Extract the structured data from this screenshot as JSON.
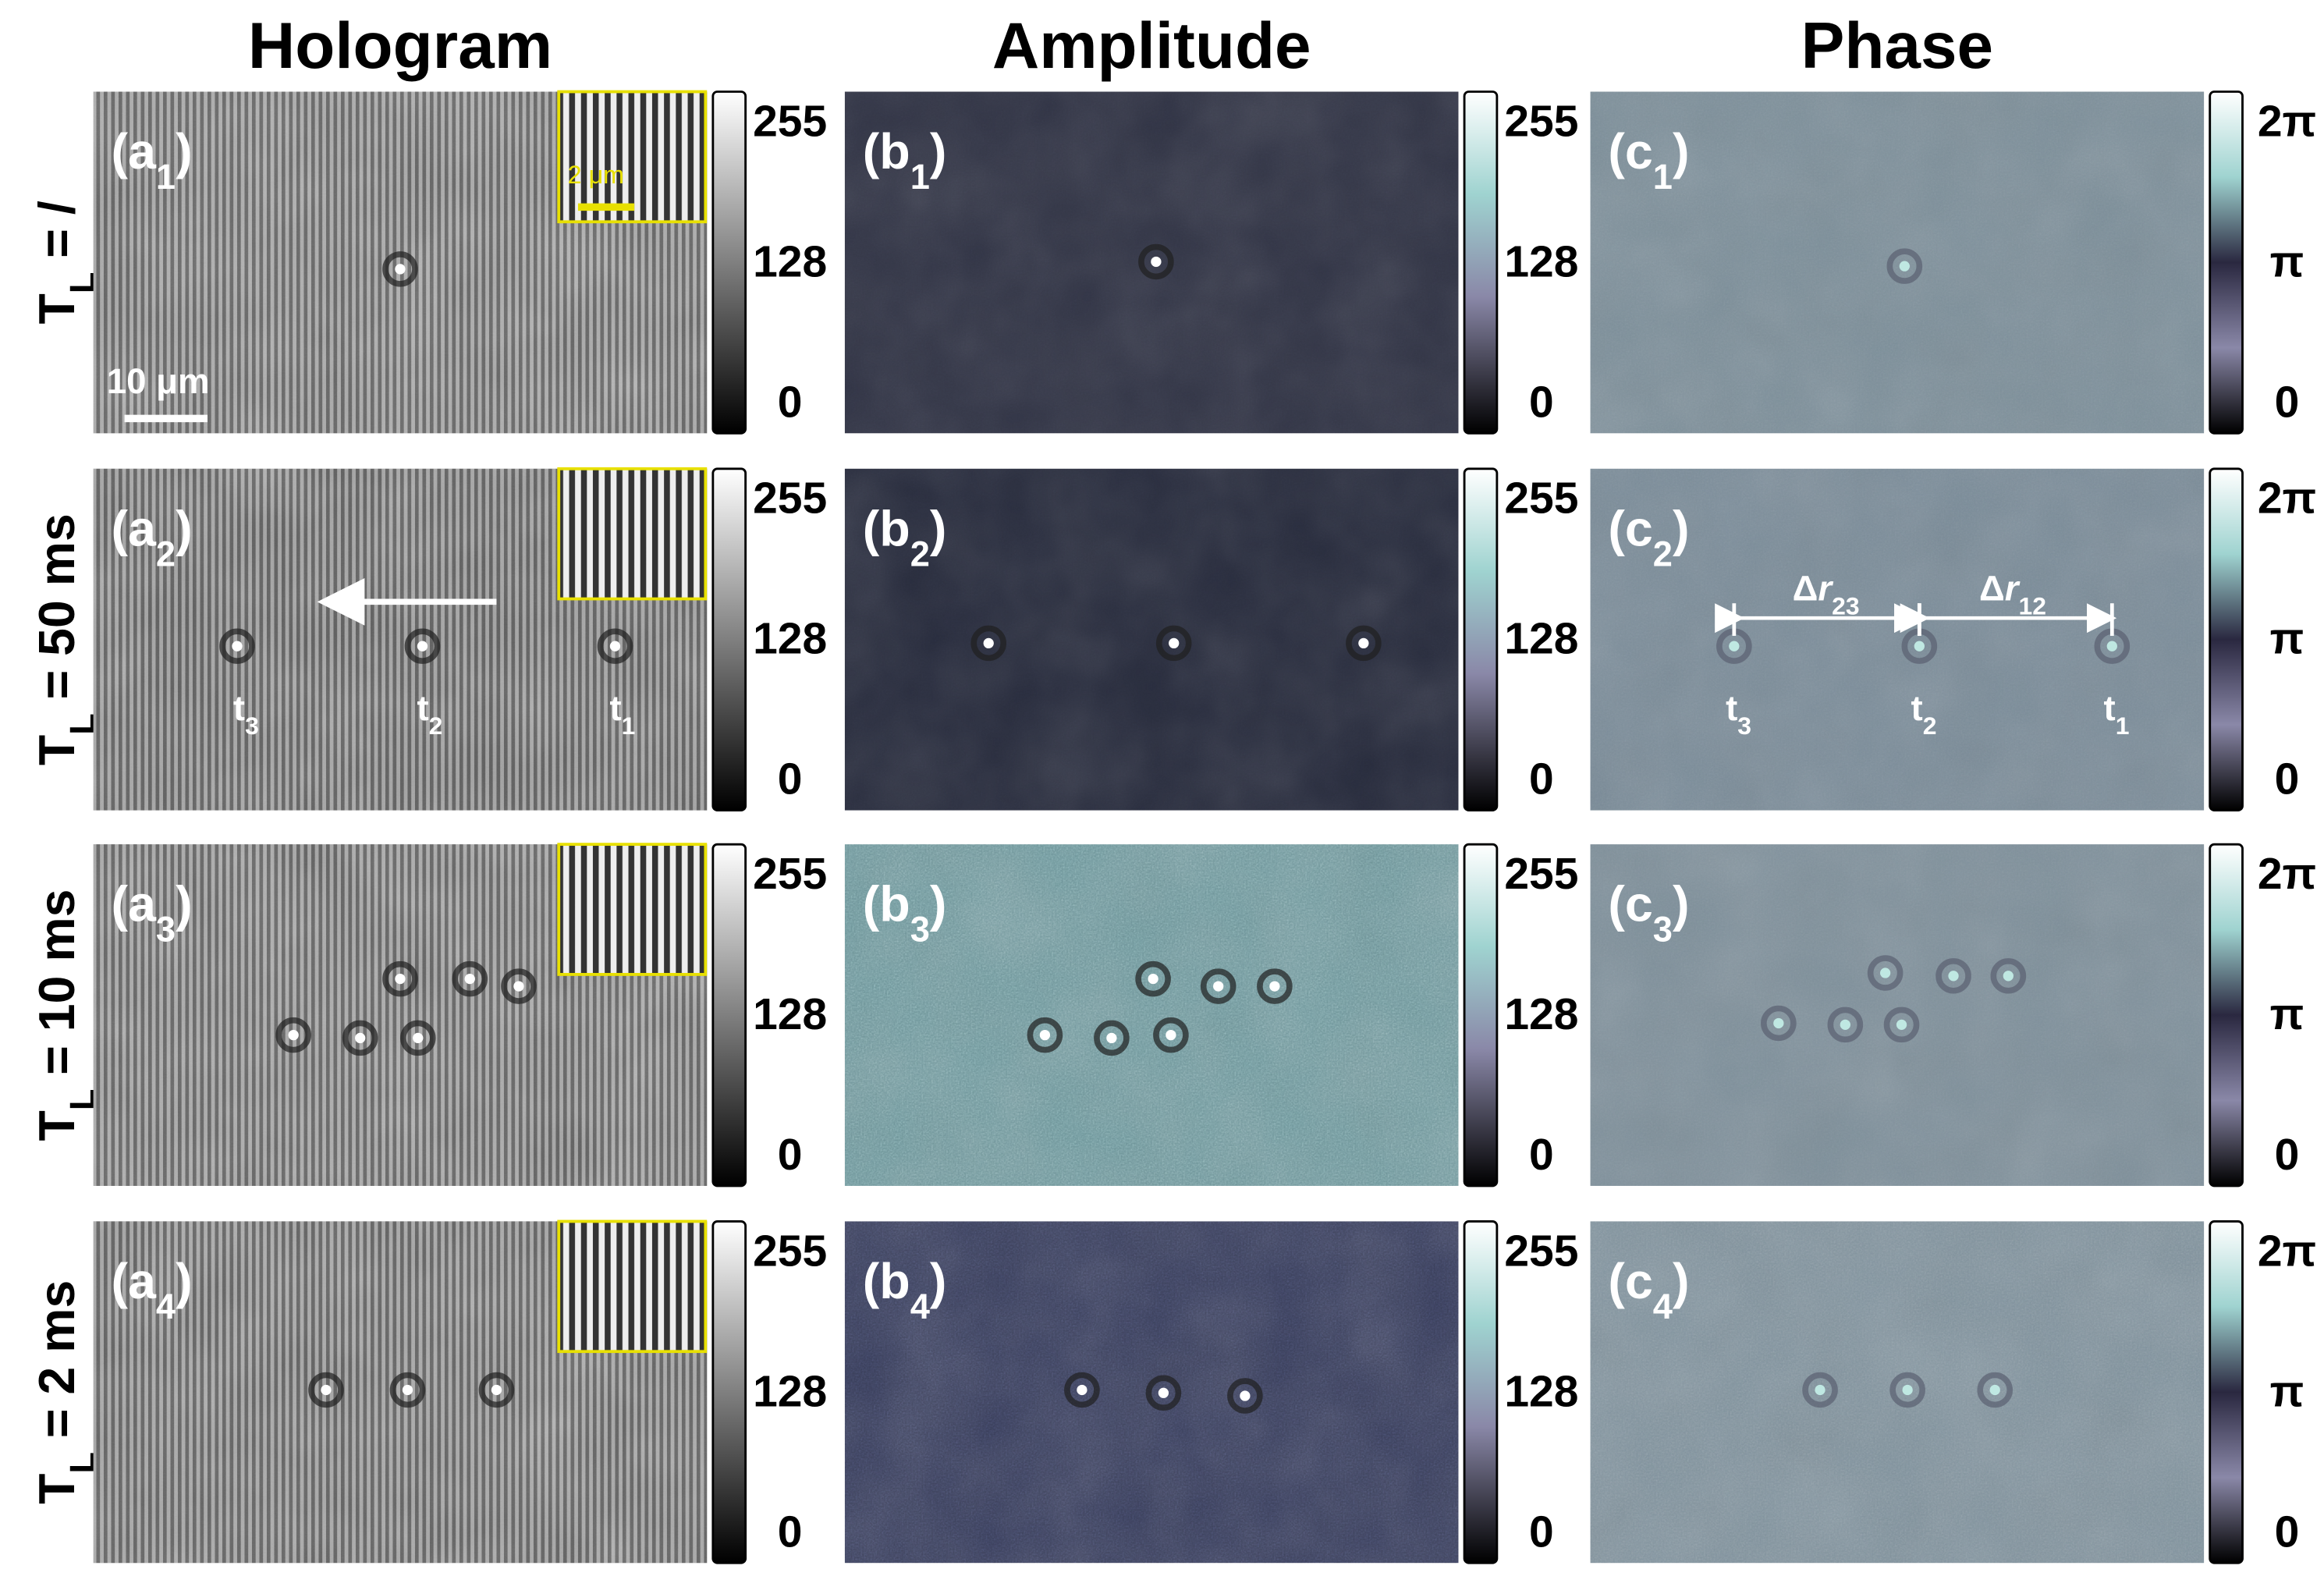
{
  "columns": [
    {
      "title": "Hologram",
      "ticks": [
        "255",
        "128",
        "0"
      ]
    },
    {
      "title": "Amplitude",
      "ticks": [
        "255",
        "128",
        "0"
      ]
    },
    {
      "title": "Phase",
      "ticks": [
        "2π",
        "π",
        "0"
      ]
    }
  ],
  "rows": [
    {
      "label": [
        "T",
        "L",
        " = /"
      ],
      "panels": [
        [
          "(a",
          "1",
          ")"
        ],
        [
          "(b",
          "1",
          ")"
        ],
        [
          "(c",
          "1",
          ")"
        ]
      ]
    },
    {
      "label": [
        "T",
        "L",
        " = 50 ms"
      ],
      "panels": [
        [
          "(a",
          "2",
          ")"
        ],
        [
          "(b",
          "2",
          ")"
        ],
        [
          "(c",
          "2",
          ")"
        ]
      ]
    },
    {
      "label": [
        "T",
        "L",
        " = 10 ms"
      ],
      "panels": [
        [
          "(a",
          "3",
          ")"
        ],
        [
          "(b",
          "3",
          ")"
        ],
        [
          "(c",
          "3",
          ")"
        ]
      ]
    },
    {
      "label": [
        "T",
        "L",
        " = 2 ms"
      ],
      "panels": [
        [
          "(a",
          "4",
          ")"
        ],
        [
          "(b",
          "4",
          ")"
        ],
        [
          "(c",
          "4",
          ")"
        ]
      ]
    }
  ],
  "annotations": {
    "inset_scale": "2 μm",
    "scale_bar": "10 μm",
    "hologram_times": [
      [
        "t",
        "3"
      ],
      [
        "t",
        "2"
      ],
      [
        "t",
        "1"
      ]
    ],
    "phase_times": [
      [
        "t",
        "3"
      ],
      [
        "t",
        "2"
      ],
      [
        "t",
        "1"
      ]
    ],
    "delta_r23": [
      "Δ",
      "r",
      "23"
    ],
    "delta_r12": [
      "Δ",
      "r",
      "12"
    ]
  }
}
